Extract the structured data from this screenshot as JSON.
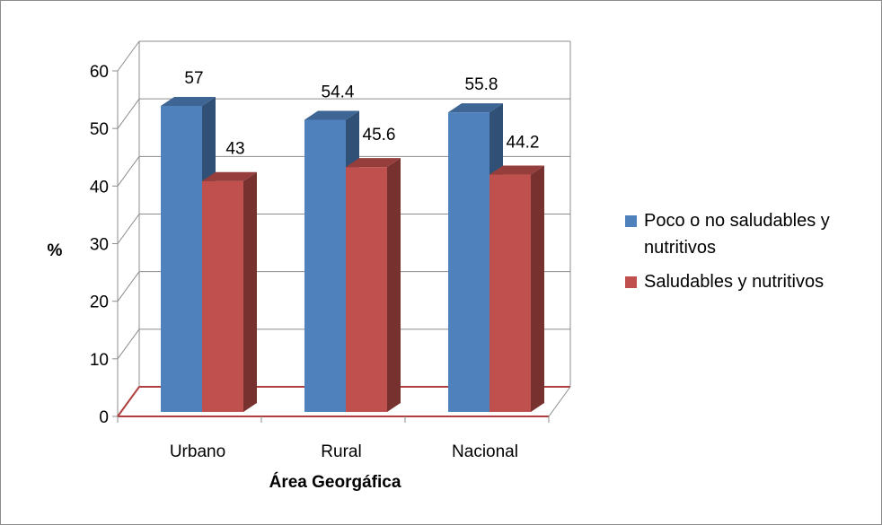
{
  "chart_data": {
    "type": "bar",
    "categories": [
      "Urbano",
      "Rural",
      "Nacional"
    ],
    "series": [
      {
        "name": "Poco o no saludables y nutritivos",
        "values": [
          57,
          54.4,
          55.8
        ],
        "color": "#4F81BD"
      },
      {
        "name": "Saludables y nutritivos",
        "values": [
          43,
          45.6,
          44.2
        ],
        "color": "#C0504D"
      }
    ],
    "data_labels": [
      [
        "57",
        "54.4",
        "55.8"
      ],
      [
        "43",
        "45.6",
        "44.2"
      ]
    ],
    "xlabel": "Área Georgáfica",
    "ylabel": "%",
    "ylim": [
      0,
      60
    ],
    "yticks": [
      "0",
      "10",
      "20",
      "30",
      "40",
      "50",
      "60"
    ],
    "grid": true,
    "legend_position": "right",
    "style_3d": true
  }
}
